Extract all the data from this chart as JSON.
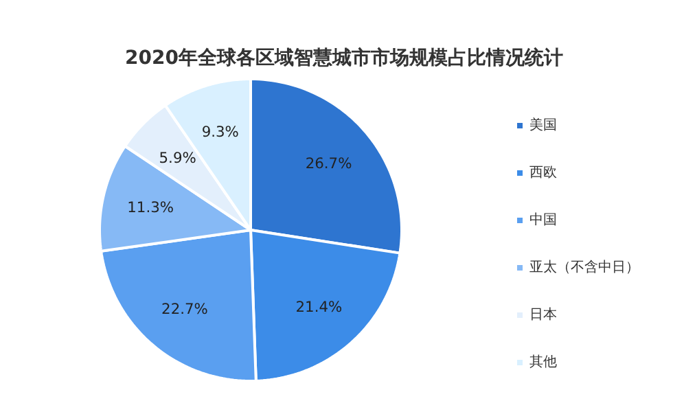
{
  "chart_data": {
    "type": "pie",
    "title": "2020年全球各区域智慧城市市场规模占比情况统计",
    "categories": [
      "美国",
      "西欧",
      "中国",
      "亚太（不含中日）",
      "日本",
      "其他"
    ],
    "values": [
      26.7,
      21.4,
      22.7,
      11.3,
      5.9,
      9.3
    ],
    "value_labels": [
      "26.7%",
      "21.4%",
      "22.7%",
      "11.3%",
      "5.9%",
      "9.3%"
    ],
    "colors": [
      "#2e75d0",
      "#3c8ce8",
      "#5a9ff0",
      "#86b9f5",
      "#e3effc",
      "#d9f0ff"
    ],
    "legend": "right"
  }
}
